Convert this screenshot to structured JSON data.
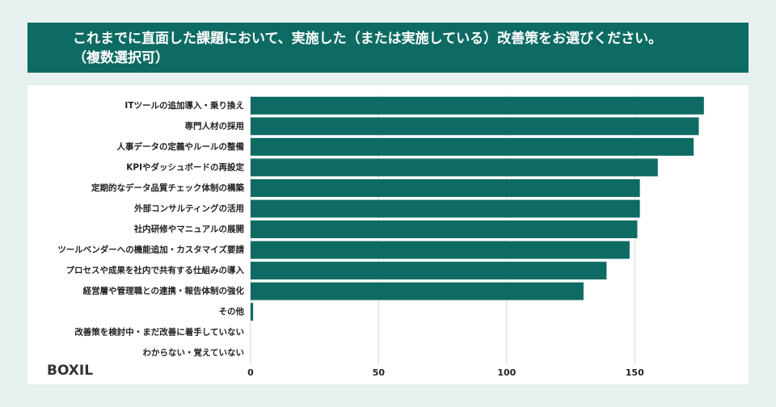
{
  "chart_data": {
    "type": "bar",
    "orientation": "horizontal",
    "title": "これまでに直面した課題において、実施した（または実施している）改善策をお選びください。",
    "subtitle": "（複数選択可）",
    "categories": [
      "ITツールの追加導入・乗り換え",
      "専門人材の採用",
      "人事データの定義やルールの整備",
      "KPIやダッシュボードの再設定",
      "定期的なデータ品質チェック体制の構築",
      "外部コンサルティングの活用",
      "社内研修やマニュアルの展開",
      "ツールベンダーへの機能追加・カスタマイズ要請",
      "プロセスや成果を社内で共有する仕組みの導入",
      "経営層や管理職との連携・報告体制の強化",
      "その他",
      "改善策を検討中・まだ改善に着手していない",
      "わからない・覚えていない"
    ],
    "values": [
      177,
      175,
      173,
      159,
      152,
      152,
      151,
      148,
      139,
      130,
      1,
      0,
      0
    ],
    "color": "#0e6b63",
    "xlim": [
      0,
      190
    ],
    "xticks": [
      0,
      50,
      100,
      150
    ],
    "grid": true,
    "logo": "BOXIL"
  }
}
